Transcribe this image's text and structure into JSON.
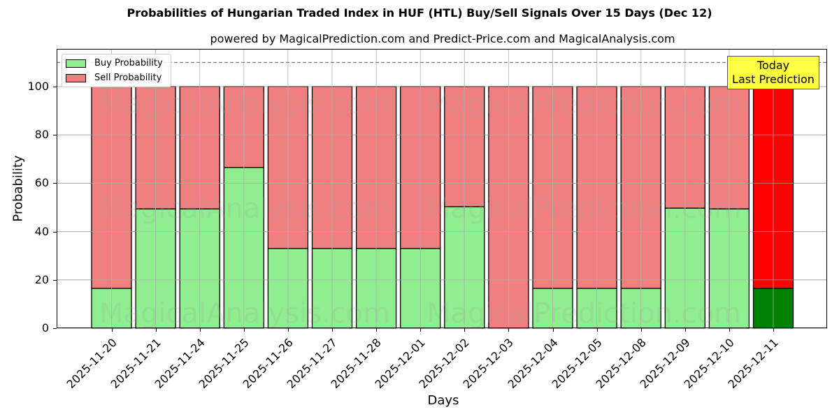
{
  "chart_data": {
    "type": "bar",
    "stacked": true,
    "title": "Probabilities of Hungarian Traded Index in HUF (HTL) Buy/Sell Signals Over 15 Days (Dec 12)",
    "subtitle": "powered by MagicalPrediction.com and Predict-Price.com and MagicalAnalysis.com",
    "xlabel": "Days",
    "ylabel": "Probability",
    "ylim": [
      0,
      115.6
    ],
    "yticks": [
      0,
      20,
      40,
      60,
      80,
      100
    ],
    "grid": true,
    "legend_position": "upper left",
    "reference_line": {
      "y": 110,
      "style": "dashed",
      "color": "#808080"
    },
    "categories": [
      "2025-11-20",
      "2025-11-21",
      "2025-11-24",
      "2025-11-25",
      "2025-11-26",
      "2025-11-27",
      "2025-11-28",
      "2025-12-01",
      "2025-12-02",
      "2025-12-03",
      "2025-12-04",
      "2025-12-05",
      "2025-12-08",
      "2025-12-09",
      "2025-12-10",
      "2025-12-11"
    ],
    "series": [
      {
        "name": "Buy Probability",
        "color": "#90ee90",
        "values": [
          16.5,
          49.4,
          49.4,
          66.5,
          33.0,
          33.0,
          33.0,
          33.0,
          50.3,
          0,
          16.5,
          16.5,
          16.5,
          49.7,
          49.4,
          16.5
        ]
      },
      {
        "name": "Sell Probability",
        "color": "#f08080",
        "values": [
          83.5,
          50.6,
          50.6,
          33.5,
          67.0,
          67.0,
          67.0,
          67.0,
          49.7,
          100,
          83.5,
          83.5,
          83.5,
          50.3,
          50.6,
          83.5
        ]
      }
    ],
    "highlight": {
      "index": 15,
      "buy_color": "#008000",
      "sell_color": "#ff0000",
      "annotation": "Today\nLast Prediction",
      "annotation_bg": "#ffff44"
    },
    "watermarks": [
      "MagicalAnalysis.com",
      "MagicalPrediction.com"
    ]
  },
  "legend": {
    "buy": "Buy Probability",
    "sell": "Sell Probability"
  },
  "annotation": {
    "line1": "Today",
    "line2": "Last Prediction"
  }
}
